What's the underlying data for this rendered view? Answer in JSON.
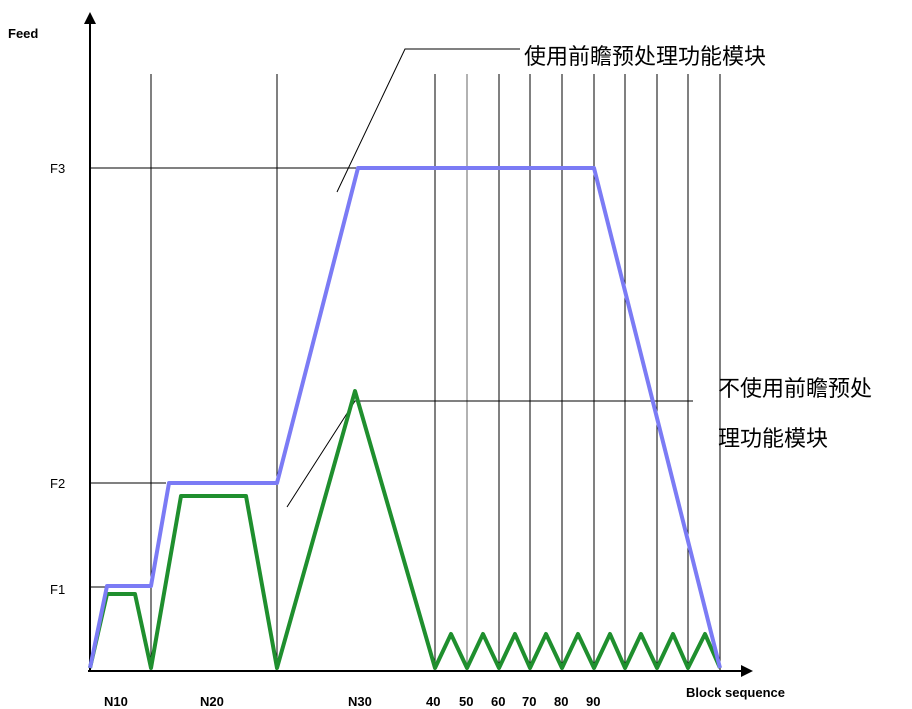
{
  "axes": {
    "y_label": "Feed",
    "x_label": "Block sequence",
    "y_ticks": [
      "F3",
      "F2",
      "F1"
    ],
    "x_ticks": [
      "N10",
      "N20",
      "N30",
      "40",
      "50",
      "60",
      "70",
      "80",
      "90"
    ]
  },
  "annotations": {
    "with_lookahead": "使用前瞻预处理功能模块",
    "without_lookahead_line1": "不使用前瞻预处",
    "without_lookahead_line2": "理功能模块"
  },
  "colors": {
    "with_lookahead": "#7b7bf5",
    "without_lookahead": "#1f8f2e",
    "axis": "#000000",
    "grid_gray": "#999999"
  }
}
